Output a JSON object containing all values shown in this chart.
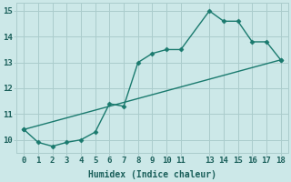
{
  "line1_x": [
    0,
    1,
    2,
    3,
    4,
    5,
    6,
    7,
    8,
    9,
    10,
    11,
    13,
    14,
    15,
    16,
    17,
    18
  ],
  "line1_y": [
    10.4,
    9.9,
    9.75,
    9.9,
    10.0,
    10.3,
    11.4,
    11.3,
    13.0,
    13.35,
    13.5,
    13.5,
    15.0,
    14.6,
    14.6,
    13.8,
    13.8,
    13.1
  ],
  "line2_x": [
    0,
    18
  ],
  "line2_y": [
    10.4,
    13.1
  ],
  "line_color": "#1a7a6e",
  "bg_color": "#cce8e8",
  "grid_color": "#aacccc",
  "xlabel": "Humidex (Indice chaleur)",
  "xlim": [
    -0.5,
    18.5
  ],
  "ylim": [
    9.5,
    15.3
  ],
  "yticks": [
    10,
    11,
    12,
    13,
    14,
    15
  ],
  "xticks": [
    0,
    1,
    2,
    3,
    4,
    5,
    6,
    7,
    8,
    9,
    10,
    11,
    13,
    14,
    15,
    16,
    17,
    18
  ],
  "markersize": 2.5,
  "linewidth": 1.0,
  "font_color": "#1a5f5a",
  "tick_fontsize": 6.5,
  "label_fontsize": 7.0
}
